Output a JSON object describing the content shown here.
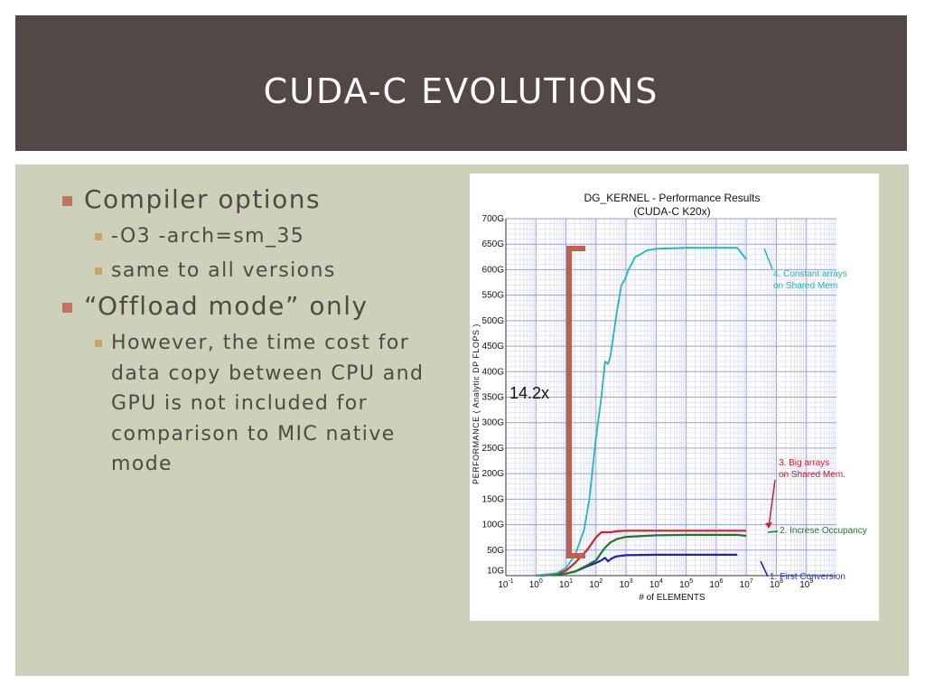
{
  "slide": {
    "title": "CUDA-C EVOLUTIONS",
    "bullets": [
      {
        "text": "Compiler options",
        "sub": [
          "-O3 -arch=sm_35",
          "same to all versions"
        ]
      },
      {
        "text": "“Offload mode” only",
        "sub": [
          "However, the time cost for data copy between CPU and GPU is not included for comparison to MIC native mode"
        ]
      }
    ]
  },
  "colors": {
    "title_bar": "#524947",
    "content_bg": "#cdd1b9",
    "bullet_l1": "#c9715e",
    "bullet_l2": "#c9a46a",
    "bracket": "#c0604a"
  },
  "chart_data": {
    "type": "line",
    "title": "DG_KERNEL - Performance Results",
    "subtitle": "(CUDA-C K20x)",
    "xlabel": "# of ELEMENTS",
    "ylabel": "PERFORMANCE ( Analytic DP FLOPS )",
    "x_scale": "log",
    "xlim": [
      0.1,
      10000000000
    ],
    "ylim": [
      0,
      700
    ],
    "grid": true,
    "y_ticks": [
      "10G",
      "50G",
      "100G",
      "150G",
      "200G",
      "250G",
      "300G",
      "350G",
      "400G",
      "450G",
      "500G",
      "550G",
      "600G",
      "650G",
      "700G"
    ],
    "y_tick_values": [
      10,
      50,
      100,
      150,
      200,
      250,
      300,
      350,
      400,
      450,
      500,
      550,
      600,
      650,
      700
    ],
    "x_tick_labels": [
      {
        "b": "10",
        "e": "-1"
      },
      {
        "b": "10",
        "e": "0"
      },
      {
        "b": "10",
        "e": "1"
      },
      {
        "b": "10",
        "e": "2"
      },
      {
        "b": "10",
        "e": "3"
      },
      {
        "b": "10",
        "e": "4"
      },
      {
        "b": "10",
        "e": "5"
      },
      {
        "b": "10",
        "e": "6"
      },
      {
        "b": "10",
        "e": "7"
      },
      {
        "b": "10",
        "e": "8"
      },
      {
        "b": "10",
        "e": "9"
      }
    ],
    "speedup_label": "14.2x",
    "series": [
      {
        "name": "1. First Conversion",
        "color": "#1f22b8",
        "points": [
          [
            1,
            0
          ],
          [
            5,
            2
          ],
          [
            10,
            4
          ],
          [
            20,
            8
          ],
          [
            50,
            18
          ],
          [
            100,
            25
          ],
          [
            150,
            30
          ],
          [
            200,
            35
          ],
          [
            250,
            28
          ],
          [
            300,
            32
          ],
          [
            400,
            36
          ],
          [
            500,
            38
          ],
          [
            1000,
            40
          ],
          [
            10000,
            41
          ],
          [
            100000,
            41
          ],
          [
            1000000,
            41
          ],
          [
            5000000,
            41
          ]
        ]
      },
      {
        "name": "2. Increse Occupancy",
        "color": "#1a7a2a",
        "points": [
          [
            1,
            0
          ],
          [
            5,
            2
          ],
          [
            10,
            4
          ],
          [
            20,
            8
          ],
          [
            50,
            20
          ],
          [
            100,
            30
          ],
          [
            150,
            45
          ],
          [
            200,
            55
          ],
          [
            300,
            65
          ],
          [
            500,
            72
          ],
          [
            1000,
            76
          ],
          [
            10000,
            79
          ],
          [
            100000,
            80
          ],
          [
            1000000,
            80
          ],
          [
            5000000,
            80
          ],
          [
            10000000,
            78
          ]
        ]
      },
      {
        "name": "3. Big arrays on Shared Mem.",
        "color": "#d4202a",
        "points": [
          [
            1,
            0
          ],
          [
            5,
            4
          ],
          [
            10,
            10
          ],
          [
            20,
            25
          ],
          [
            50,
            50
          ],
          [
            100,
            75
          ],
          [
            150,
            85
          ],
          [
            200,
            85
          ],
          [
            300,
            85
          ],
          [
            500,
            87
          ],
          [
            1000,
            88
          ],
          [
            10000,
            88
          ],
          [
            100000,
            88
          ],
          [
            1000000,
            88
          ],
          [
            5000000,
            88
          ],
          [
            10000000,
            88
          ]
        ]
      },
      {
        "name": "4. Constant arrays on Shared Mem",
        "color": "#20b6c0",
        "points": [
          [
            1,
            0
          ],
          [
            5,
            5
          ],
          [
            10,
            15
          ],
          [
            20,
            40
          ],
          [
            40,
            90
          ],
          [
            60,
            150
          ],
          [
            100,
            270
          ],
          [
            150,
            350
          ],
          [
            200,
            420
          ],
          [
            250,
            415
          ],
          [
            300,
            430
          ],
          [
            500,
            520
          ],
          [
            700,
            570
          ],
          [
            900,
            580
          ],
          [
            1200,
            600
          ],
          [
            1500,
            610
          ],
          [
            2000,
            625
          ],
          [
            3000,
            630
          ],
          [
            5000,
            638
          ],
          [
            10000,
            641
          ],
          [
            100000,
            643
          ],
          [
            1000000,
            643
          ],
          [
            5000000,
            643
          ],
          [
            10000000,
            620
          ]
        ]
      }
    ]
  }
}
